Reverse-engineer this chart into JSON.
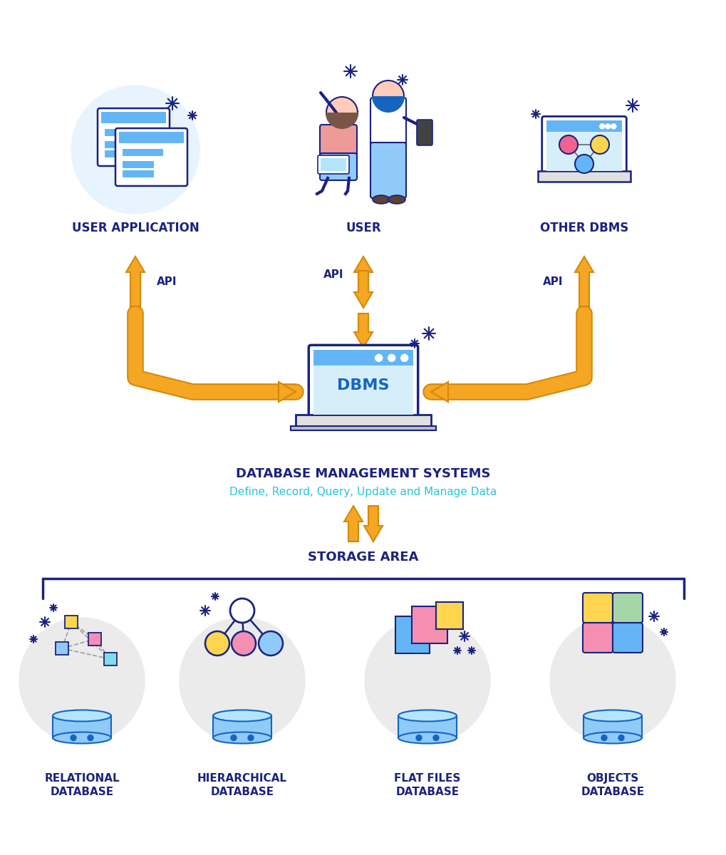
{
  "bg_color": "#ffffff",
  "arrow_color": "#F5A623",
  "arrow_outline": "#D4890A",
  "dark_blue": "#1a237e",
  "mid_blue": "#1565C0",
  "light_blue": "#90CAF9",
  "sky_blue": "#64B5F6",
  "light_bg": "#E8F4FD",
  "pink": "#F48FB1",
  "yellow": "#FFD54F",
  "green": "#A5D6A7",
  "dbms_label": "DBMS",
  "dbms_subtitle": "DATABASE MANAGEMENT SYSTEMS",
  "dbms_desc": "Define, Record, Query, Update and Manage Data",
  "storage_label": "STORAGE AREA",
  "top_labels": [
    "USER APPLICATION",
    "USER",
    "OTHER DBMS"
  ],
  "api_labels": [
    "API",
    "API",
    "API"
  ],
  "bottom_labels": [
    "RELATIONAL\nDATABASE",
    "HIERARCHICAL\nDATABASE",
    "FLAT FILES\nDATABASE",
    "OBJECTS\nDATABASE"
  ],
  "label_color": "#1a237e",
  "desc_color": "#26C6DA",
  "figure_width": 10.2,
  "figure_height": 12.0
}
